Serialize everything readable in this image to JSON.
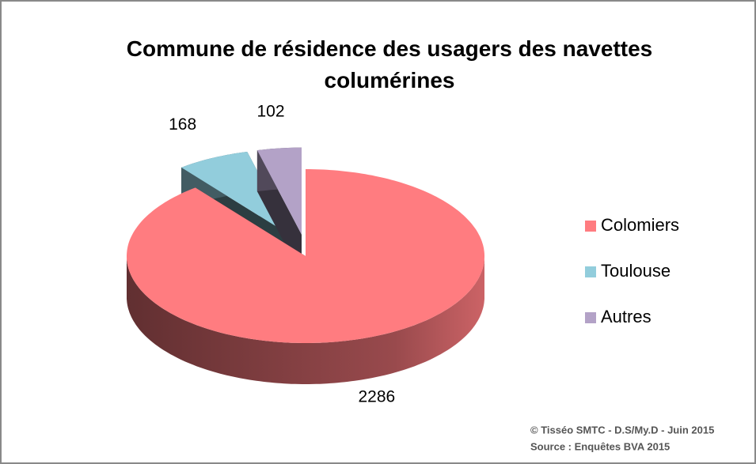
{
  "chart_data": {
    "type": "pie",
    "title": "Commune de résidence des usagers des navettes columérines",
    "categories": [
      "Colomiers",
      "Toulouse",
      "Autres"
    ],
    "values": [
      2286,
      168,
      102
    ],
    "colors": [
      "#ff7c80",
      "#92cddc",
      "#b3a2c7"
    ],
    "legend": "right",
    "notes": [
      "© Tisséo SMTC - D.S/My.D - Juin 2015",
      "Source : Enquêtes BVA 2015"
    ]
  }
}
